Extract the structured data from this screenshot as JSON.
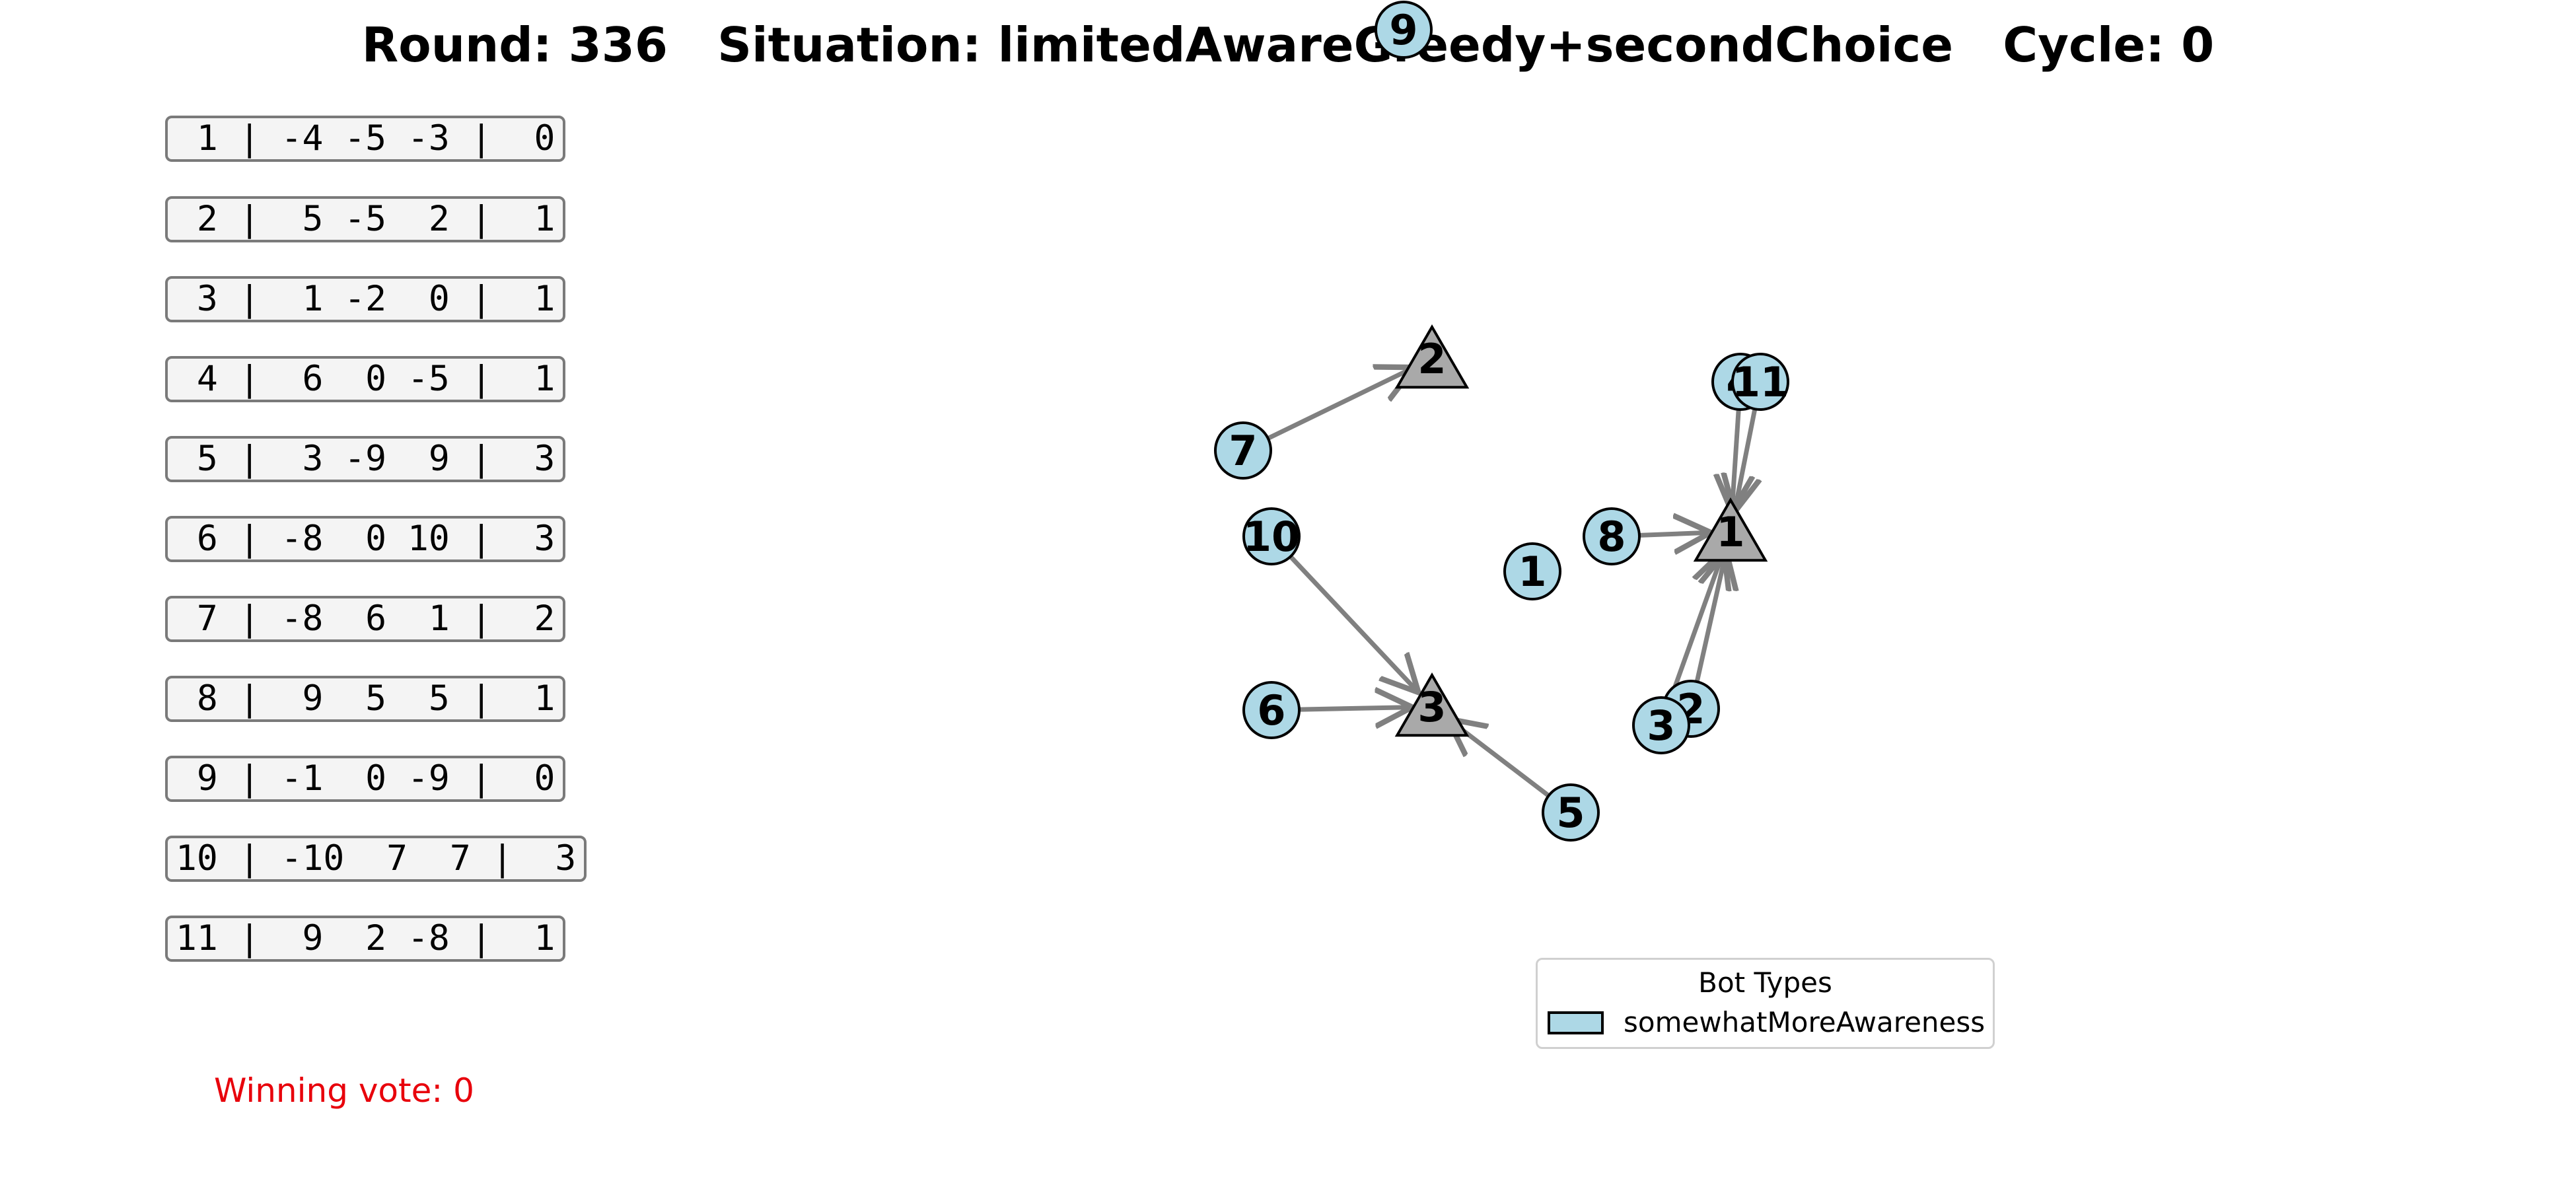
{
  "header": {
    "title": "Round: 336   Situation: limitedAwareGreedy+secondChoice   Cycle: 0"
  },
  "bots": [
    {
      "label": " 1 | -4 -5 -3 |  0"
    },
    {
      "label": " 2 |  5 -5  2 |  1"
    },
    {
      "label": " 3 |  1 -2  0 |  1"
    },
    {
      "label": " 4 |  6  0 -5 |  1"
    },
    {
      "label": " 5 |  3 -9  9 |  3"
    },
    {
      "label": " 6 | -8  0 10 |  3"
    },
    {
      "label": " 7 | -8  6  1 |  2"
    },
    {
      "label": " 8 |  9  5  5 |  1"
    },
    {
      "label": " 9 | -1  0 -9 |  0"
    },
    {
      "label": "10 | -10  7  7 |  3"
    },
    {
      "label": "11 |  9  2 -8 |  1"
    }
  ],
  "winning_vote": "Winning vote: 0",
  "graph": {
    "options": [
      {
        "id": "option-1",
        "label": "1"
      },
      {
        "id": "option-2",
        "label": "2"
      },
      {
        "id": "option-3",
        "label": "3"
      }
    ],
    "bot_nodes": [
      {
        "id": "bot-7",
        "label": "7"
      },
      {
        "id": "bot-10",
        "label": "10"
      },
      {
        "id": "bot-6",
        "label": "6"
      },
      {
        "id": "bot-5",
        "label": "5"
      },
      {
        "id": "bot-1",
        "label": "1"
      },
      {
        "id": "bot-8",
        "label": "8"
      },
      {
        "id": "bot-4",
        "label": "4"
      },
      {
        "id": "bot-11",
        "label": "11"
      },
      {
        "id": "bot-2",
        "label": "2"
      },
      {
        "id": "bot-3",
        "label": "3"
      },
      {
        "id": "bot-9",
        "label": "9"
      }
    ],
    "edges": [
      {
        "from": "bot-7",
        "to": "option-2"
      },
      {
        "from": "bot-10",
        "to": "option-3"
      },
      {
        "from": "bot-6",
        "to": "option-3"
      },
      {
        "from": "bot-5",
        "to": "option-3"
      },
      {
        "from": "bot-8",
        "to": "option-1"
      },
      {
        "from": "bot-4",
        "to": "option-1"
      },
      {
        "from": "bot-11",
        "to": "option-1"
      },
      {
        "from": "bot-2",
        "to": "option-1"
      },
      {
        "from": "bot-3",
        "to": "option-1"
      }
    ],
    "colors": {
      "bot_fill": "#add8e6",
      "option_fill": "#a9a9a9",
      "edge": "#808080"
    }
  },
  "legend": {
    "title": "Bot Types",
    "items": [
      {
        "label": "somewhatMoreAwareness",
        "color": "#add8e6"
      }
    ]
  }
}
